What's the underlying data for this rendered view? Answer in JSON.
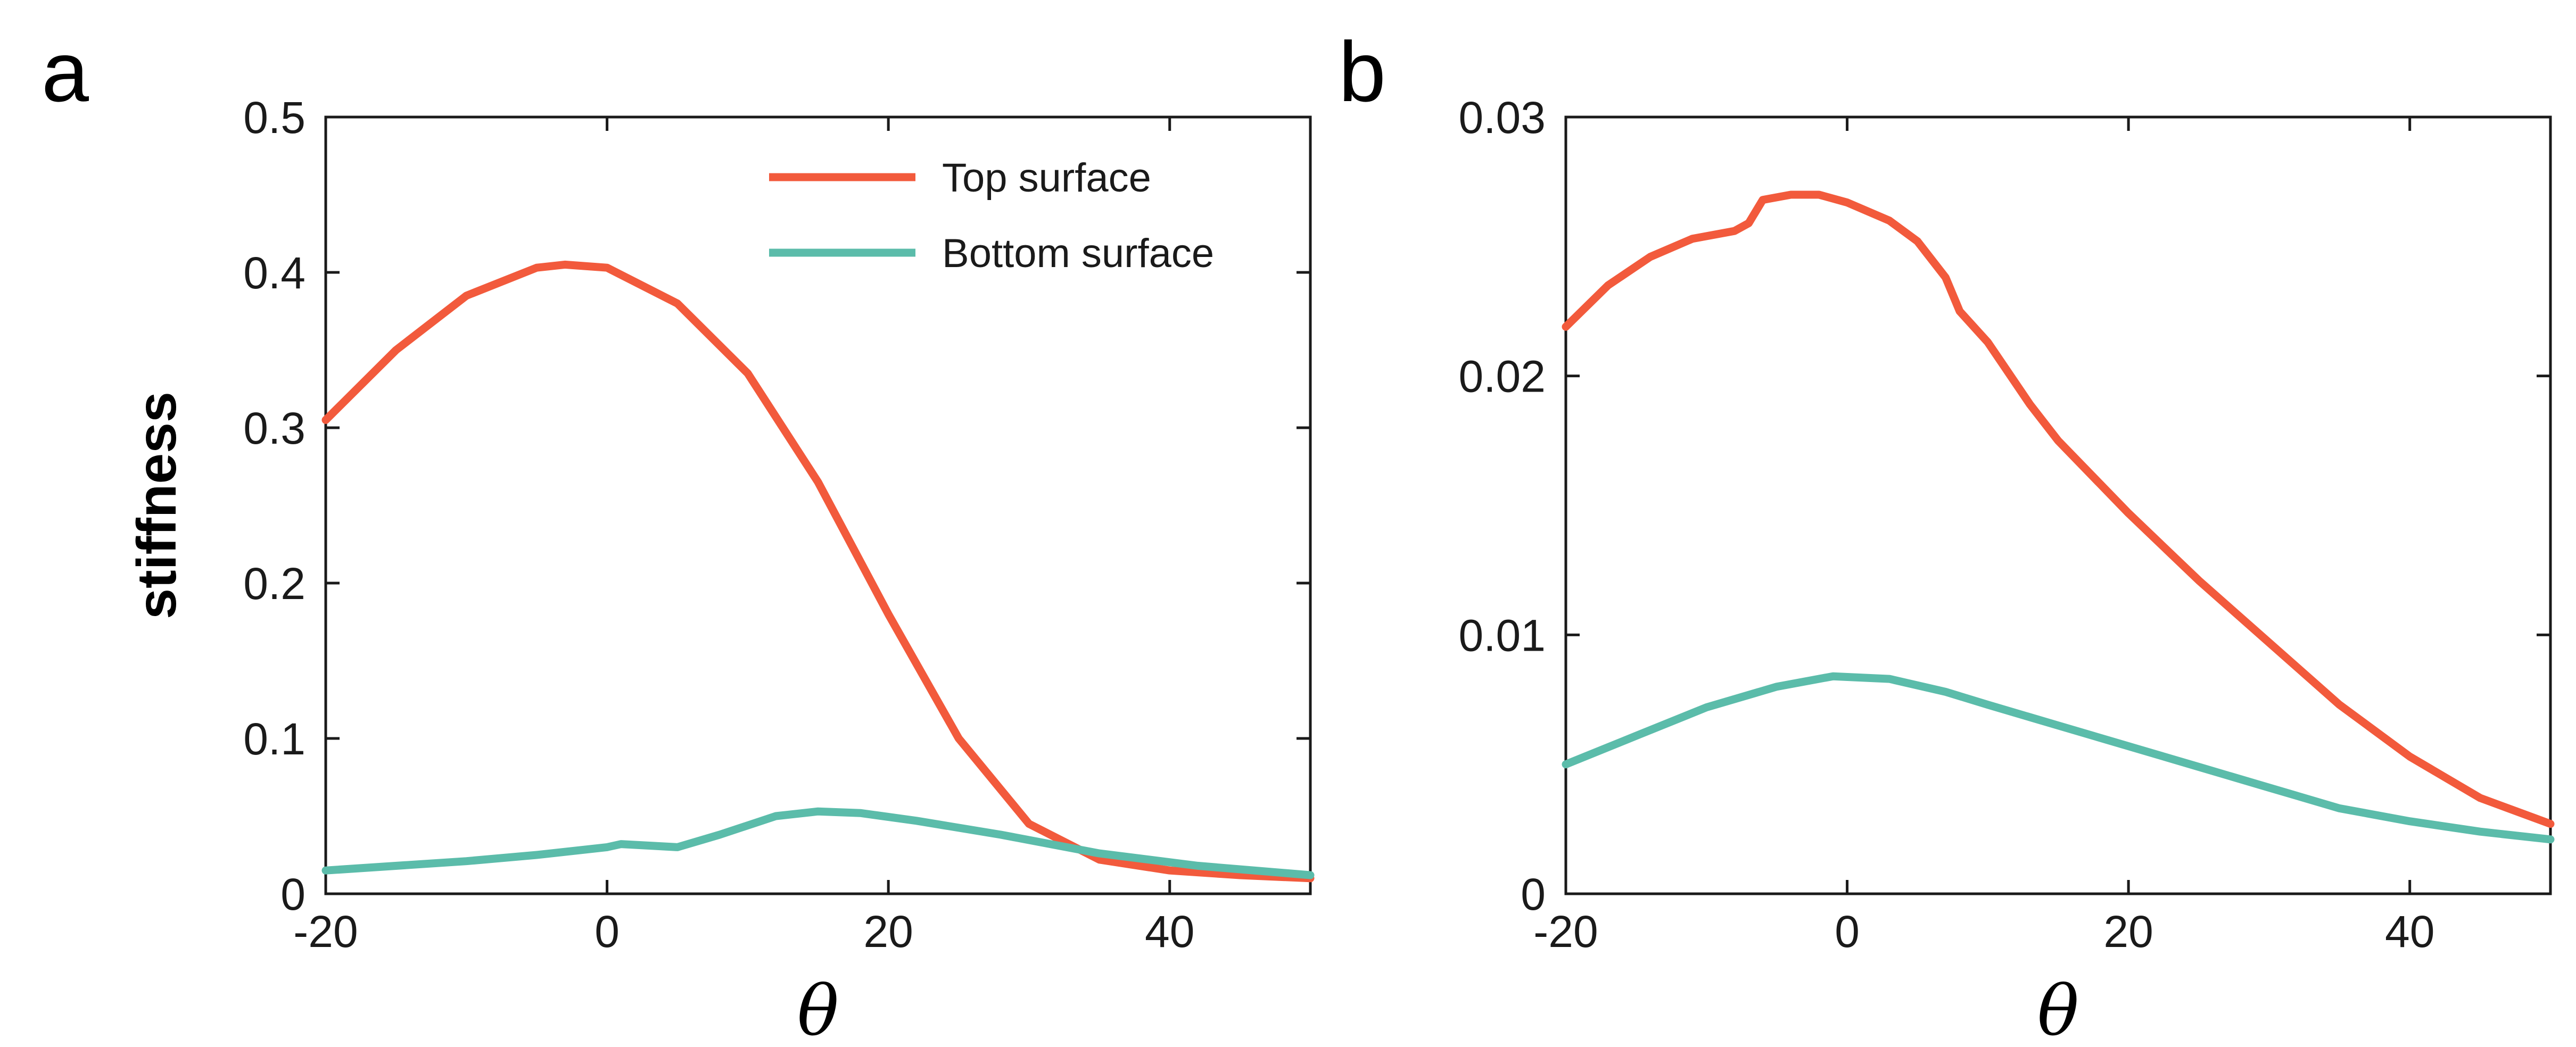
{
  "chart_data": [
    {
      "panel": "a",
      "type": "line",
      "title": "",
      "xlabel": "θ",
      "ylabel": "stiffness",
      "xlim": [
        -20,
        50
      ],
      "ylim": [
        0,
        0.5
      ],
      "xticks": [
        -20,
        0,
        20,
        40
      ],
      "xtick_labels": [
        "-20",
        "0",
        "20",
        "40"
      ],
      "yticks": [
        0,
        0.1,
        0.2,
        0.3,
        0.4,
        0.5
      ],
      "ytick_labels": [
        "0",
        "0.1",
        "0.2",
        "0.3",
        "0.4",
        "0.5"
      ],
      "legend": {
        "placement": "top-right",
        "entries": [
          "Top surface",
          "Bottom surface"
        ]
      },
      "series": [
        {
          "name": "Top surface",
          "color": "#f25a3c",
          "x": [
            -20,
            -15,
            -10,
            -5,
            -3,
            0,
            5,
            10,
            15,
            20,
            25,
            30,
            35,
            40,
            45,
            50
          ],
          "y": [
            0.305,
            0.35,
            0.385,
            0.403,
            0.405,
            0.403,
            0.38,
            0.335,
            0.265,
            0.18,
            0.1,
            0.045,
            0.022,
            0.015,
            0.012,
            0.01
          ]
        },
        {
          "name": "Bottom surface",
          "color": "#5bbcaa",
          "x": [
            -20,
            -10,
            -5,
            0,
            1,
            3,
            5,
            8,
            12,
            15,
            18,
            22,
            28,
            35,
            42,
            50
          ],
          "y": [
            0.015,
            0.021,
            0.025,
            0.03,
            0.032,
            0.031,
            0.03,
            0.038,
            0.05,
            0.053,
            0.052,
            0.047,
            0.038,
            0.026,
            0.018,
            0.012
          ]
        }
      ]
    },
    {
      "panel": "b",
      "type": "line",
      "title": "",
      "xlabel": "θ",
      "ylabel": "",
      "xlim": [
        -20,
        50
      ],
      "ylim": [
        0,
        0.03
      ],
      "xticks": [
        -20,
        0,
        20,
        40
      ],
      "xtick_labels": [
        "-20",
        "0",
        "20",
        "40"
      ],
      "yticks": [
        0,
        0.01,
        0.02,
        0.03
      ],
      "ytick_labels": [
        "0",
        "0.01",
        "0.02",
        "0.03"
      ],
      "series": [
        {
          "name": "Top surface",
          "color": "#f25a3c",
          "x": [
            -20,
            -17,
            -14,
            -11,
            -8,
            -7,
            -6,
            -4,
            -2,
            0,
            3,
            5,
            7,
            8,
            10,
            11,
            13,
            15,
            20,
            25,
            30,
            35,
            40,
            45,
            50
          ],
          "y": [
            0.0219,
            0.0235,
            0.0246,
            0.0253,
            0.0256,
            0.0259,
            0.0268,
            0.027,
            0.027,
            0.0267,
            0.026,
            0.0252,
            0.0238,
            0.0225,
            0.0213,
            0.0205,
            0.0189,
            0.0175,
            0.0147,
            0.0121,
            0.0097,
            0.0073,
            0.0053,
            0.0037,
            0.0027
          ]
        },
        {
          "name": "Bottom surface",
          "color": "#5bbcaa",
          "x": [
            -20,
            -15,
            -10,
            -5,
            -1,
            3,
            7,
            10,
            15,
            20,
            25,
            30,
            35,
            40,
            45,
            50
          ],
          "y": [
            0.005,
            0.0061,
            0.0072,
            0.008,
            0.0084,
            0.0083,
            0.0078,
            0.0073,
            0.0065,
            0.0057,
            0.0049,
            0.0041,
            0.0033,
            0.0028,
            0.0024,
            0.0021
          ]
        }
      ]
    }
  ],
  "panel_labels": [
    "a",
    "b"
  ]
}
